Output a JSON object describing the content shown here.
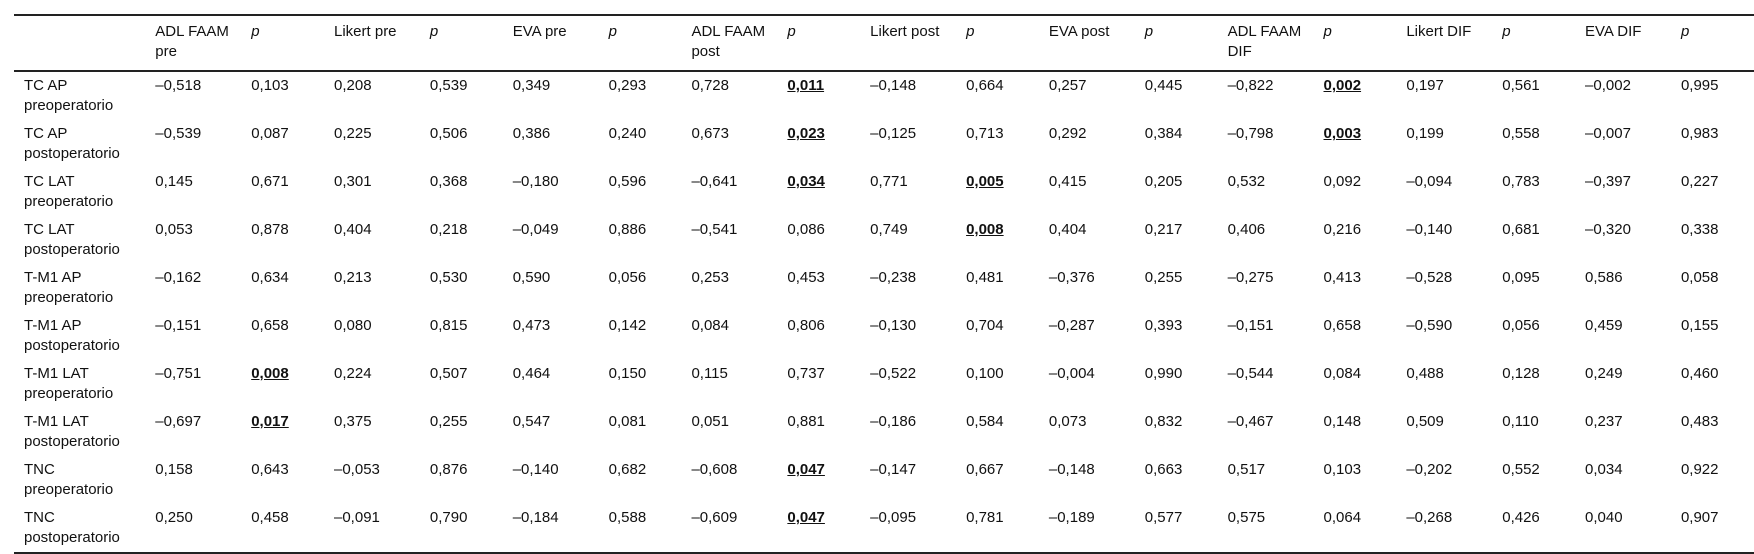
{
  "table": {
    "header": [
      "",
      "ADL FAAM pre",
      "p",
      "Likert pre",
      "p",
      "EVA pre",
      "p",
      "ADL FAAM post",
      "p",
      "Likert post",
      "p",
      "EVA post",
      "p",
      "ADL FAAM DIF",
      "p",
      "Likert DIF",
      "p",
      "EVA DIF",
      "p"
    ],
    "rows": [
      {
        "label": "TC AP preoperatorio",
        "cells": [
          {
            "v": "–0,518",
            "sig": false
          },
          {
            "v": "0,103",
            "sig": false
          },
          {
            "v": "0,208",
            "sig": false
          },
          {
            "v": "0,539",
            "sig": false
          },
          {
            "v": "0,349",
            "sig": false
          },
          {
            "v": "0,293",
            "sig": false
          },
          {
            "v": "0,728",
            "sig": false
          },
          {
            "v": "0,011",
            "sig": true
          },
          {
            "v": "–0,148",
            "sig": false
          },
          {
            "v": "0,664",
            "sig": false
          },
          {
            "v": "0,257",
            "sig": false
          },
          {
            "v": "0,445",
            "sig": false
          },
          {
            "v": "–0,822",
            "sig": false
          },
          {
            "v": "0,002",
            "sig": true
          },
          {
            "v": "0,197",
            "sig": false
          },
          {
            "v": "0,561",
            "sig": false
          },
          {
            "v": "–0,002",
            "sig": false
          },
          {
            "v": "0,995",
            "sig": false
          }
        ]
      },
      {
        "label": "TC AP postoperatorio",
        "cells": [
          {
            "v": "–0,539",
            "sig": false
          },
          {
            "v": "0,087",
            "sig": false
          },
          {
            "v": "0,225",
            "sig": false
          },
          {
            "v": "0,506",
            "sig": false
          },
          {
            "v": "0,386",
            "sig": false
          },
          {
            "v": "0,240",
            "sig": false
          },
          {
            "v": "0,673",
            "sig": false
          },
          {
            "v": "0,023",
            "sig": true
          },
          {
            "v": "–0,125",
            "sig": false
          },
          {
            "v": "0,713",
            "sig": false
          },
          {
            "v": "0,292",
            "sig": false
          },
          {
            "v": "0,384",
            "sig": false
          },
          {
            "v": "–0,798",
            "sig": false
          },
          {
            "v": "0,003",
            "sig": true
          },
          {
            "v": "0,199",
            "sig": false
          },
          {
            "v": "0,558",
            "sig": false
          },
          {
            "v": "–0,007",
            "sig": false
          },
          {
            "v": "0,983",
            "sig": false
          }
        ]
      },
      {
        "label": "TC LAT preoperatorio",
        "cells": [
          {
            "v": "0,145",
            "sig": false
          },
          {
            "v": "0,671",
            "sig": false
          },
          {
            "v": "0,301",
            "sig": false
          },
          {
            "v": "0,368",
            "sig": false
          },
          {
            "v": "–0,180",
            "sig": false
          },
          {
            "v": "0,596",
            "sig": false
          },
          {
            "v": "–0,641",
            "sig": false
          },
          {
            "v": "0,034",
            "sig": true
          },
          {
            "v": "0,771",
            "sig": false
          },
          {
            "v": "0,005",
            "sig": true
          },
          {
            "v": "0,415",
            "sig": false
          },
          {
            "v": "0,205",
            "sig": false
          },
          {
            "v": "0,532",
            "sig": false
          },
          {
            "v": "0,092",
            "sig": false
          },
          {
            "v": "–0,094",
            "sig": false
          },
          {
            "v": "0,783",
            "sig": false
          },
          {
            "v": "–0,397",
            "sig": false
          },
          {
            "v": "0,227",
            "sig": false
          }
        ]
      },
      {
        "label": "TC LAT postoperatorio",
        "cells": [
          {
            "v": "0,053",
            "sig": false
          },
          {
            "v": "0,878",
            "sig": false
          },
          {
            "v": "0,404",
            "sig": false
          },
          {
            "v": "0,218",
            "sig": false
          },
          {
            "v": "–0,049",
            "sig": false
          },
          {
            "v": "0,886",
            "sig": false
          },
          {
            "v": "–0,541",
            "sig": false
          },
          {
            "v": "0,086",
            "sig": false
          },
          {
            "v": "0,749",
            "sig": false
          },
          {
            "v": "0,008",
            "sig": true
          },
          {
            "v": "0,404",
            "sig": false
          },
          {
            "v": "0,217",
            "sig": false
          },
          {
            "v": "0,406",
            "sig": false
          },
          {
            "v": "0,216",
            "sig": false
          },
          {
            "v": "–0,140",
            "sig": false
          },
          {
            "v": "0,681",
            "sig": false
          },
          {
            "v": "–0,320",
            "sig": false
          },
          {
            "v": "0,338",
            "sig": false
          }
        ]
      },
      {
        "label": "T-M1 AP preoperatorio",
        "cells": [
          {
            "v": "–0,162",
            "sig": false
          },
          {
            "v": "0,634",
            "sig": false
          },
          {
            "v": "0,213",
            "sig": false
          },
          {
            "v": "0,530",
            "sig": false
          },
          {
            "v": "0,590",
            "sig": false
          },
          {
            "v": "0,056",
            "sig": false
          },
          {
            "v": "0,253",
            "sig": false
          },
          {
            "v": "0,453",
            "sig": false
          },
          {
            "v": "–0,238",
            "sig": false
          },
          {
            "v": "0,481",
            "sig": false
          },
          {
            "v": "–0,376",
            "sig": false
          },
          {
            "v": "0,255",
            "sig": false
          },
          {
            "v": "–0,275",
            "sig": false
          },
          {
            "v": "0,413",
            "sig": false
          },
          {
            "v": "–0,528",
            "sig": false
          },
          {
            "v": "0,095",
            "sig": false
          },
          {
            "v": "0,586",
            "sig": false
          },
          {
            "v": "0,058",
            "sig": false
          }
        ]
      },
      {
        "label": "T-M1 AP postoperatorio",
        "cells": [
          {
            "v": "–0,151",
            "sig": false
          },
          {
            "v": "0,658",
            "sig": false
          },
          {
            "v": "0,080",
            "sig": false
          },
          {
            "v": "0,815",
            "sig": false
          },
          {
            "v": "0,473",
            "sig": false
          },
          {
            "v": "0,142",
            "sig": false
          },
          {
            "v": "0,084",
            "sig": false
          },
          {
            "v": "0,806",
            "sig": false
          },
          {
            "v": "–0,130",
            "sig": false
          },
          {
            "v": "0,704",
            "sig": false
          },
          {
            "v": "–0,287",
            "sig": false
          },
          {
            "v": "0,393",
            "sig": false
          },
          {
            "v": "–0,151",
            "sig": false
          },
          {
            "v": "0,658",
            "sig": false
          },
          {
            "v": "–0,590",
            "sig": false
          },
          {
            "v": "0,056",
            "sig": false
          },
          {
            "v": "0,459",
            "sig": false
          },
          {
            "v": "0,155",
            "sig": false
          }
        ]
      },
      {
        "label": "T-M1 LAT preoperatorio",
        "cells": [
          {
            "v": "–0,751",
            "sig": false
          },
          {
            "v": "0,008",
            "sig": true
          },
          {
            "v": "0,224",
            "sig": false
          },
          {
            "v": "0,507",
            "sig": false
          },
          {
            "v": "0,464",
            "sig": false
          },
          {
            "v": "0,150",
            "sig": false
          },
          {
            "v": "0,115",
            "sig": false
          },
          {
            "v": "0,737",
            "sig": false
          },
          {
            "v": "–0,522",
            "sig": false
          },
          {
            "v": "0,100",
            "sig": false
          },
          {
            "v": "–0,004",
            "sig": false
          },
          {
            "v": "0,990",
            "sig": false
          },
          {
            "v": "–0,544",
            "sig": false
          },
          {
            "v": "0,084",
            "sig": false
          },
          {
            "v": "0,488",
            "sig": false
          },
          {
            "v": "0,128",
            "sig": false
          },
          {
            "v": "0,249",
            "sig": false
          },
          {
            "v": "0,460",
            "sig": false
          }
        ]
      },
      {
        "label": "T-M1 LAT postoperatorio",
        "cells": [
          {
            "v": "–0,697",
            "sig": false
          },
          {
            "v": "0,017",
            "sig": true
          },
          {
            "v": "0,375",
            "sig": false
          },
          {
            "v": "0,255",
            "sig": false
          },
          {
            "v": "0,547",
            "sig": false
          },
          {
            "v": "0,081",
            "sig": false
          },
          {
            "v": "0,051",
            "sig": false
          },
          {
            "v": "0,881",
            "sig": false
          },
          {
            "v": "–0,186",
            "sig": false
          },
          {
            "v": "0,584",
            "sig": false
          },
          {
            "v": "0,073",
            "sig": false
          },
          {
            "v": "0,832",
            "sig": false
          },
          {
            "v": "–0,467",
            "sig": false
          },
          {
            "v": "0,148",
            "sig": false
          },
          {
            "v": "0,509",
            "sig": false
          },
          {
            "v": "0,110",
            "sig": false
          },
          {
            "v": "0,237",
            "sig": false
          },
          {
            "v": "0,483",
            "sig": false
          }
        ]
      },
      {
        "label": "TNC preoperatorio",
        "cells": [
          {
            "v": "0,158",
            "sig": false
          },
          {
            "v": "0,643",
            "sig": false
          },
          {
            "v": "–0,053",
            "sig": false
          },
          {
            "v": "0,876",
            "sig": false
          },
          {
            "v": "–0,140",
            "sig": false
          },
          {
            "v": "0,682",
            "sig": false
          },
          {
            "v": "–0,608",
            "sig": false
          },
          {
            "v": "0,047",
            "sig": true
          },
          {
            "v": "–0,147",
            "sig": false
          },
          {
            "v": "0,667",
            "sig": false
          },
          {
            "v": "–0,148",
            "sig": false
          },
          {
            "v": "0,663",
            "sig": false
          },
          {
            "v": "0,517",
            "sig": false
          },
          {
            "v": "0,103",
            "sig": false
          },
          {
            "v": "–0,202",
            "sig": false
          },
          {
            "v": "0,552",
            "sig": false
          },
          {
            "v": "0,034",
            "sig": false
          },
          {
            "v": "0,922",
            "sig": false
          }
        ]
      },
      {
        "label": "TNC postoperatorio",
        "cells": [
          {
            "v": "0,250",
            "sig": false
          },
          {
            "v": "0,458",
            "sig": false
          },
          {
            "v": "–0,091",
            "sig": false
          },
          {
            "v": "0,790",
            "sig": false
          },
          {
            "v": "–0,184",
            "sig": false
          },
          {
            "v": "0,588",
            "sig": false
          },
          {
            "v": "–0,609",
            "sig": false
          },
          {
            "v": "0,047",
            "sig": true
          },
          {
            "v": "–0,095",
            "sig": false
          },
          {
            "v": "0,781",
            "sig": false
          },
          {
            "v": "–0,189",
            "sig": false
          },
          {
            "v": "0,577",
            "sig": false
          },
          {
            "v": "0,575",
            "sig": false
          },
          {
            "v": "0,064",
            "sig": false
          },
          {
            "v": "–0,268",
            "sig": false
          },
          {
            "v": "0,426",
            "sig": false
          },
          {
            "v": "0,040",
            "sig": false
          },
          {
            "v": "0,907",
            "sig": false
          }
        ]
      }
    ]
  }
}
